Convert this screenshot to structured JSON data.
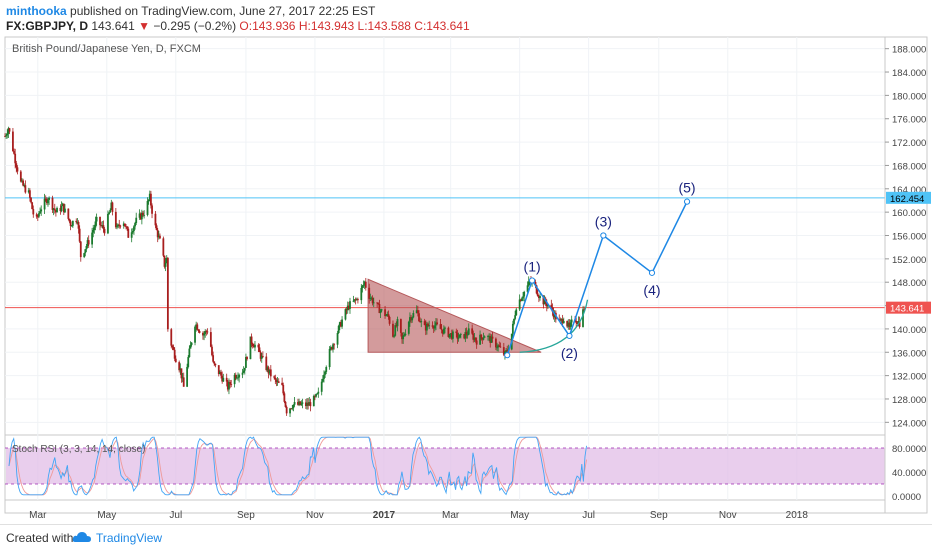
{
  "header": {
    "author": "minthooka",
    "published": "published on TradingView.com, June 27, 2017 22:25 EST",
    "symbol": "FX:GBPJPY, D",
    "last": "143.641",
    "change_arrow": "▼",
    "change": "−0.295 (−0.2%)",
    "o": "O:143.936",
    "h": "H:143.943",
    "l": "L:143.588",
    "c": "C:143.641"
  },
  "footer": {
    "created_with": "Created with",
    "brand": "TradingView",
    "logo_icon": "tradingview-cloud-icon"
  },
  "chart_data": {
    "type": "candlestick",
    "title": "British Pound/Japanese Yen, D, FXCM",
    "y_range": [
      122,
      190
    ],
    "y_ticks": [
      "188.000",
      "184.000",
      "180.000",
      "176.000",
      "172.000",
      "168.000",
      "164.000",
      "160.000",
      "156.000",
      "152.000",
      "148.000",
      "144.000",
      "140.000",
      "136.000",
      "132.000",
      "128.000",
      "124.000"
    ],
    "x_range": [
      "2016-02-01",
      "2018-03-20"
    ],
    "x_ticks": [
      {
        "label": "Mar",
        "date": "2016-03-01",
        "bold": false
      },
      {
        "label": "May",
        "date": "2016-05-01",
        "bold": false
      },
      {
        "label": "Jul",
        "date": "2016-07-01",
        "bold": false
      },
      {
        "label": "Sep",
        "date": "2016-09-01",
        "bold": false
      },
      {
        "label": "Nov",
        "date": "2016-11-01",
        "bold": false
      },
      {
        "label": "2017",
        "date": "2017-01-01",
        "bold": true
      },
      {
        "label": "Mar",
        "date": "2017-03-01",
        "bold": false
      },
      {
        "label": "May",
        "date": "2017-05-01",
        "bold": false
      },
      {
        "label": "Jul",
        "date": "2017-07-01",
        "bold": false
      },
      {
        "label": "Sep",
        "date": "2017-09-01",
        "bold": false
      },
      {
        "label": "Nov",
        "date": "2017-11-01",
        "bold": false
      },
      {
        "label": "2018",
        "date": "2018-01-01",
        "bold": false
      }
    ],
    "price_path": [
      [
        "2016-02-01",
        173
      ],
      [
        "2016-02-04",
        174.5
      ],
      [
        "2016-02-10",
        169
      ],
      [
        "2016-02-15",
        165
      ],
      [
        "2016-02-22",
        163.2
      ],
      [
        "2016-02-28",
        158
      ],
      [
        "2016-03-03",
        160.5
      ],
      [
        "2016-03-10",
        162.5
      ],
      [
        "2016-03-17",
        160
      ],
      [
        "2016-03-23",
        161
      ],
      [
        "2016-03-30",
        158
      ],
      [
        "2016-04-05",
        159
      ],
      [
        "2016-04-08",
        152.5
      ],
      [
        "2016-04-15",
        155
      ],
      [
        "2016-04-22",
        158.5
      ],
      [
        "2016-04-29",
        157
      ],
      [
        "2016-05-05",
        161
      ],
      [
        "2016-05-10",
        157
      ],
      [
        "2016-05-15",
        159
      ],
      [
        "2016-05-20",
        156
      ],
      [
        "2016-05-27",
        158.5
      ],
      [
        "2016-06-03",
        160
      ],
      [
        "2016-06-08",
        162.5
      ],
      [
        "2016-06-12",
        158
      ],
      [
        "2016-06-17",
        155
      ],
      [
        "2016-06-21",
        151
      ],
      [
        "2016-06-23",
        152
      ],
      [
        "2016-06-24",
        140
      ],
      [
        "2016-06-26",
        138
      ],
      [
        "2016-07-01",
        135
      ],
      [
        "2016-07-05",
        133
      ],
      [
        "2016-07-08",
        130
      ],
      [
        "2016-07-12",
        135
      ],
      [
        "2016-07-18",
        141
      ],
      [
        "2016-07-25",
        139
      ],
      [
        "2016-07-30",
        140
      ],
      [
        "2016-08-03",
        134
      ],
      [
        "2016-08-10",
        132
      ],
      [
        "2016-08-16",
        130
      ],
      [
        "2016-08-22",
        132
      ],
      [
        "2016-08-30",
        133
      ],
      [
        "2016-09-05",
        138
      ],
      [
        "2016-09-10",
        137
      ],
      [
        "2016-09-15",
        135
      ],
      [
        "2016-09-20",
        133
      ],
      [
        "2016-09-27",
        131
      ],
      [
        "2016-10-03",
        130
      ],
      [
        "2016-10-07",
        126
      ],
      [
        "2016-10-12",
        127
      ],
      [
        "2016-10-20",
        127
      ],
      [
        "2016-10-26",
        127
      ],
      [
        "2016-11-01",
        128
      ],
      [
        "2016-11-05",
        129
      ],
      [
        "2016-11-08",
        132
      ],
      [
        "2016-11-14",
        136
      ],
      [
        "2016-11-20",
        139
      ],
      [
        "2016-11-26",
        142
      ],
      [
        "2016-12-01",
        144
      ],
      [
        "2016-12-08",
        145
      ],
      [
        "2016-12-15",
        148
      ],
      [
        "2016-12-18",
        146
      ],
      [
        "2016-12-25",
        144
      ],
      [
        "2016-12-30",
        143
      ],
      [
        "2017-01-05",
        142
      ],
      [
        "2017-01-09",
        139
      ],
      [
        "2017-01-13",
        141
      ],
      [
        "2017-01-17",
        138
      ],
      [
        "2017-01-24",
        142
      ],
      [
        "2017-01-30",
        143
      ],
      [
        "2017-02-05",
        140
      ],
      [
        "2017-02-12",
        141
      ],
      [
        "2017-02-20",
        140
      ],
      [
        "2017-03-01",
        139
      ],
      [
        "2017-03-10",
        138.5
      ],
      [
        "2017-03-17",
        139.5
      ],
      [
        "2017-03-24",
        138
      ],
      [
        "2017-03-31",
        139
      ],
      [
        "2017-04-06",
        138
      ],
      [
        "2017-04-12",
        137
      ],
      [
        "2017-04-18",
        135.5
      ],
      [
        "2017-04-23",
        138
      ],
      [
        "2017-04-28",
        144
      ],
      [
        "2017-05-04",
        146
      ],
      [
        "2017-05-10",
        148
      ],
      [
        "2017-05-14",
        147.5
      ],
      [
        "2017-05-20",
        145
      ],
      [
        "2017-05-27",
        144
      ],
      [
        "2017-06-02",
        142
      ],
      [
        "2017-06-06",
        141
      ],
      [
        "2017-06-09",
        142
      ],
      [
        "2017-06-14",
        140
      ],
      [
        "2017-06-18",
        142
      ],
      [
        "2017-06-23",
        141
      ],
      [
        "2017-06-27",
        143.64
      ]
    ],
    "horizontal_levels": [
      {
        "name": "resistance",
        "value": 162.454,
        "label": "162.454",
        "color": "#4fc3f7"
      },
      {
        "name": "last-price",
        "value": 143.641,
        "label": "143.641",
        "color": "#ef5350"
      }
    ],
    "triangle": [
      [
        "2016-12-18",
        148.5
      ],
      [
        "2016-12-18",
        136
      ],
      [
        "2017-05-20",
        136
      ]
    ],
    "triangle_color": "#b5585a",
    "elliott_wave": [
      {
        "label": "",
        "date": "2017-04-20",
        "value": 135.5
      },
      {
        "label": "(1)",
        "date": "2017-05-12",
        "value": 148.3
      },
      {
        "label": "(2)",
        "date": "2017-06-14",
        "value": 138.8
      },
      {
        "label": "(3)",
        "date": "2017-07-14",
        "value": 156
      },
      {
        "label": "(4)",
        "date": "2017-08-26",
        "value": 149.6
      },
      {
        "label": "(5)",
        "date": "2017-09-26",
        "value": 161.8
      }
    ],
    "wave_color": "#1e88e5",
    "arc_color": "#26a69a",
    "oscillator": {
      "name": "Stoch RSI (3, 3, 14, 14, close)",
      "range": [
        0,
        100
      ],
      "ticks": [
        "80.0000",
        "40.0000",
        "0.0000"
      ],
      "band": [
        20,
        80
      ],
      "band_color": "#e1bee7",
      "k_color": "#42a5f5",
      "d_color": "#ef9a9a"
    }
  }
}
